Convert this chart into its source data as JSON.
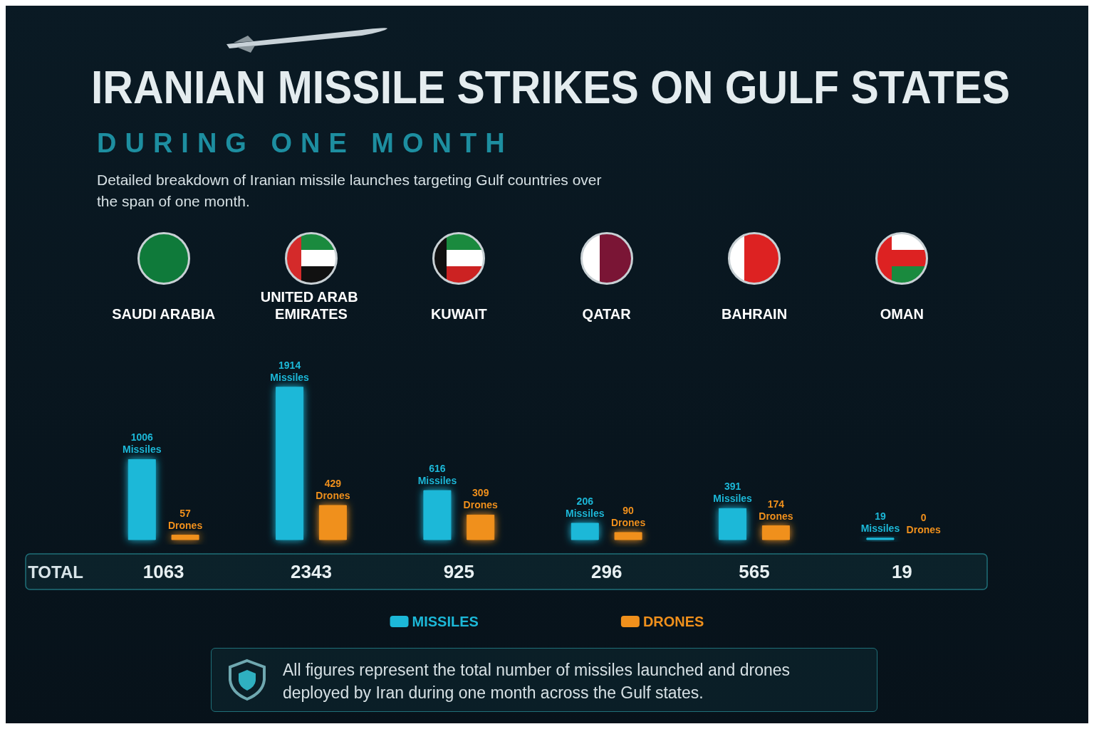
{
  "chart_data": {
    "type": "bar",
    "title": "IRANIAN MISSILE STRIKES ON GULF STATES",
    "subtitle": "DURING ONE MONTH",
    "categories": [
      "SAUDI ARABIA",
      "UNITED ARAB EMIRATES",
      "KUWAIT",
      "QATAR",
      "BAHRAIN",
      "OMAN"
    ],
    "series": [
      {
        "name": "MISSILES",
        "color": "#1cb8d8",
        "values": [
          1006,
          1914,
          616,
          206,
          391,
          19
        ],
        "value_labels": [
          "1006 Missiles",
          "1914 Missiles",
          "616 Missiles",
          "206 Missiles",
          "391 Missiles",
          "19 Missiles"
        ]
      },
      {
        "name": "DRONES",
        "color": "#f0901c",
        "values": [
          57,
          429,
          309,
          90,
          174,
          0
        ],
        "value_labels": [
          "57 Drones",
          "429 Drones",
          "309 Drones",
          "90 Drones",
          "174 Drones",
          "0 Drones"
        ]
      }
    ],
    "totals": [
      "1063",
      "2343",
      "925",
      "296",
      "565",
      "19"
    ],
    "annotations": [
      "Detailed breakdown of Iranian missile launches targeting Gulf countries over the span of one month.",
      "TOTAL",
      "All figures represent the total number of missiles launched and drones deployed by Iran during one month across the Gulf states."
    ],
    "legend": "bottom",
    "tick_labels": "x"
  }
}
